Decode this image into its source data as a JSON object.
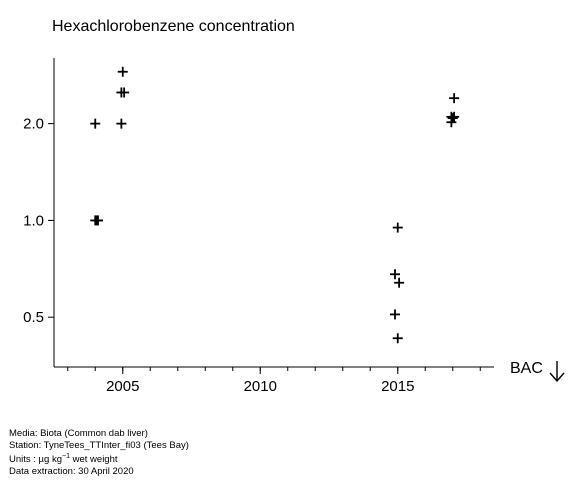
{
  "chart_data": {
    "type": "scatter",
    "title": "Hexachlorobenzene concentration",
    "xlabel": "",
    "ylabel": "",
    "x_ticks": [
      2005,
      2010,
      2015
    ],
    "x_tick_labels": [
      "2005",
      "2010",
      "2015"
    ],
    "x_minor_ticks": [
      2003,
      2004,
      2005,
      2006,
      2007,
      2008,
      2009,
      2010,
      2011,
      2012,
      2013,
      2014,
      2015,
      2016,
      2017,
      2018
    ],
    "xlim": [
      2002.5,
      2018.5
    ],
    "y_scale": "log",
    "y_ticks": [
      0.5,
      1.0,
      2.0
    ],
    "y_tick_labels": [
      "0.5",
      "1.0",
      "2.0"
    ],
    "ylim": [
      0.35,
      3.2
    ],
    "marker": "+",
    "grid": false,
    "points": [
      {
        "x": 2004.0,
        "y": 2.0
      },
      {
        "x": 2004.0,
        "y": 1.0
      },
      {
        "x": 2004.05,
        "y": 1.0
      },
      {
        "x": 2004.1,
        "y": 1.0
      },
      {
        "x": 2005.0,
        "y": 2.9
      },
      {
        "x": 2004.95,
        "y": 2.5
      },
      {
        "x": 2005.05,
        "y": 2.5
      },
      {
        "x": 2004.95,
        "y": 2.0
      },
      {
        "x": 2015.0,
        "y": 0.95
      },
      {
        "x": 2014.9,
        "y": 0.68
      },
      {
        "x": 2015.05,
        "y": 0.64
      },
      {
        "x": 2014.9,
        "y": 0.51
      },
      {
        "x": 2015.0,
        "y": 0.43
      },
      {
        "x": 2017.05,
        "y": 2.4
      },
      {
        "x": 2016.95,
        "y": 2.1
      },
      {
        "x": 2017.05,
        "y": 2.1
      },
      {
        "x": 2017.0,
        "y": 2.08
      },
      {
        "x": 2016.95,
        "y": 2.02
      }
    ],
    "annotation": "BAC"
  },
  "footer": {
    "media": "Media: Biota (Common dab liver)",
    "station": "Station: TyneTees_TTInter_fi03 (Tees Bay)",
    "units_prefix": "Units : µg kg",
    "units_exp": "−1",
    "units_suffix": " wet weight",
    "extraction": "Data extraction: 30 April 2020"
  }
}
